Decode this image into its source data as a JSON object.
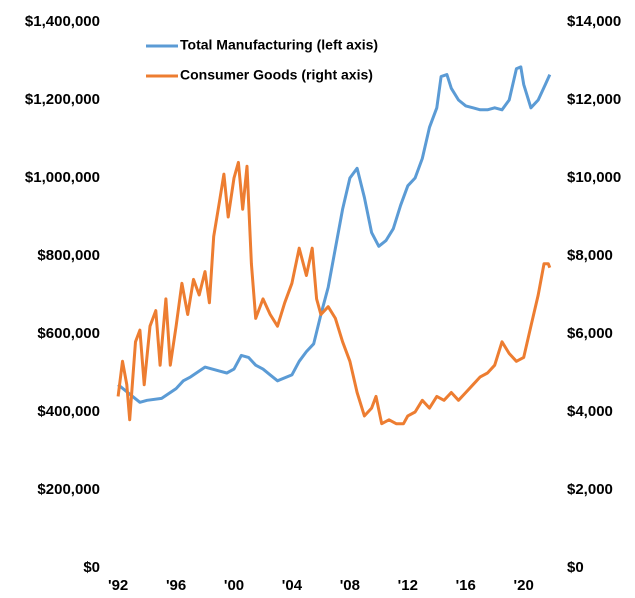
{
  "chart_data": {
    "type": "line",
    "xlim": [
      1991.3,
      2022.3
    ],
    "xticks": [
      {
        "value": 1992,
        "label": "'92"
      },
      {
        "value": 1996,
        "label": "'96"
      },
      {
        "value": 2000,
        "label": "'00"
      },
      {
        "value": 2004,
        "label": "'04"
      },
      {
        "value": 2008,
        "label": "'08"
      },
      {
        "value": 2012,
        "label": "'12"
      },
      {
        "value": 2016,
        "label": "'16"
      },
      {
        "value": 2020,
        "label": "'20"
      }
    ],
    "ylim": [
      0,
      1400000
    ],
    "yticks": [
      {
        "value": 0,
        "label": "$0"
      },
      {
        "value": 200000,
        "label": "$200,000"
      },
      {
        "value": 400000,
        "label": "$400,000"
      },
      {
        "value": 600000,
        "label": "$600,000"
      },
      {
        "value": 800000,
        "label": "$800,000"
      },
      {
        "value": 1000000,
        "label": "$1,000,000"
      },
      {
        "value": 1200000,
        "label": "$1,200,000"
      },
      {
        "value": 1400000,
        "label": "$1,400,000"
      }
    ],
    "y2lim": [
      0,
      14000
    ],
    "y2ticks": [
      {
        "value": 0,
        "label": "$0"
      },
      {
        "value": 2000,
        "label": "$2,000"
      },
      {
        "value": 4000,
        "label": "$4,000"
      },
      {
        "value": 6000,
        "label": "$6,000"
      },
      {
        "value": 8000,
        "label": "$8,000"
      },
      {
        "value": 10000,
        "label": "$10,000"
      },
      {
        "value": 12000,
        "label": "$12,000"
      },
      {
        "value": 14000,
        "label": "$14,000"
      }
    ],
    "legend": "upper left",
    "series": [
      {
        "name": "Total Manufacturing (left axis)",
        "color": "#5b9bd5",
        "axis": "y",
        "x": [
          1992,
          1993,
          1993.5,
          1994,
          1995,
          1996,
          1996.5,
          1997,
          1998,
          1999,
          1999.5,
          2000,
          2000.5,
          2001,
          2001.5,
          2002,
          2002.5,
          2003,
          2004,
          2004.5,
          2005,
          2005.5,
          2006,
          2006.5,
          2007,
          2007.5,
          2008,
          2008.5,
          2009,
          2009.5,
          2010,
          2010.5,
          2011,
          2011.5,
          2012,
          2012.5,
          2013,
          2013.5,
          2014,
          2014.3,
          2014.7,
          2015,
          2015.5,
          2016,
          2016.5,
          2017,
          2017.5,
          2018,
          2018.5,
          2019,
          2019.5,
          2019.8,
          2020,
          2020.5,
          2021,
          2021.5,
          2021.8
        ],
        "values": [
          470000,
          440000,
          425000,
          430000,
          435000,
          460000,
          480000,
          490000,
          515000,
          505000,
          500000,
          510000,
          545000,
          540000,
          520000,
          510000,
          495000,
          480000,
          495000,
          530000,
          555000,
          575000,
          650000,
          720000,
          820000,
          920000,
          1000000,
          1025000,
          950000,
          860000,
          825000,
          840000,
          870000,
          930000,
          980000,
          1000000,
          1050000,
          1130000,
          1180000,
          1260000,
          1265000,
          1230000,
          1200000,
          1185000,
          1180000,
          1175000,
          1175000,
          1180000,
          1175000,
          1200000,
          1280000,
          1285000,
          1240000,
          1180000,
          1200000,
          1240000,
          1265000
        ]
      },
      {
        "name": "Consumer Goods (right axis)",
        "color": "#ed7d31",
        "axis": "y2",
        "x": [
          1992,
          1992.3,
          1992.6,
          1992.8,
          1993.2,
          1993.5,
          1993.8,
          1994.2,
          1994.6,
          1994.9,
          1995.3,
          1995.6,
          1996,
          1996.4,
          1996.8,
          1997.2,
          1997.6,
          1998,
          1998.3,
          1998.6,
          1999,
          1999.3,
          1999.6,
          2000,
          2000.3,
          2000.6,
          2000.9,
          2001.2,
          2001.5,
          2002,
          2002.5,
          2003,
          2003.5,
          2004,
          2004.5,
          2005,
          2005.4,
          2005.7,
          2006,
          2006.5,
          2007,
          2007.5,
          2008,
          2008.5,
          2009,
          2009.5,
          2009.8,
          2010.2,
          2010.7,
          2011.2,
          2011.7,
          2012,
          2012.5,
          2013,
          2013.5,
          2014,
          2014.5,
          2015,
          2015.5,
          2016,
          2016.5,
          2017,
          2017.5,
          2018,
          2018.5,
          2019,
          2019.5,
          2020,
          2020.5,
          2021,
          2021.4,
          2021.7,
          2021.8
        ],
        "values": [
          4400,
          5300,
          4700,
          3800,
          5800,
          6100,
          4700,
          6200,
          6600,
          5200,
          6900,
          5200,
          6200,
          7300,
          6500,
          7400,
          7000,
          7600,
          6800,
          8500,
          9400,
          10100,
          9000,
          10000,
          10400,
          9200,
          10300,
          7800,
          6400,
          6900,
          6500,
          6200,
          6800,
          7300,
          8200,
          7500,
          8200,
          6900,
          6500,
          6700,
          6400,
          5800,
          5300,
          4500,
          3900,
          4100,
          4400,
          3700,
          3800,
          3700,
          3700,
          3900,
          4000,
          4300,
          4100,
          4400,
          4300,
          4500,
          4300,
          4500,
          4700,
          4900,
          5000,
          5200,
          5800,
          5500,
          5300,
          5400,
          6200,
          7000,
          7800,
          7800,
          7700
        ]
      }
    ]
  }
}
